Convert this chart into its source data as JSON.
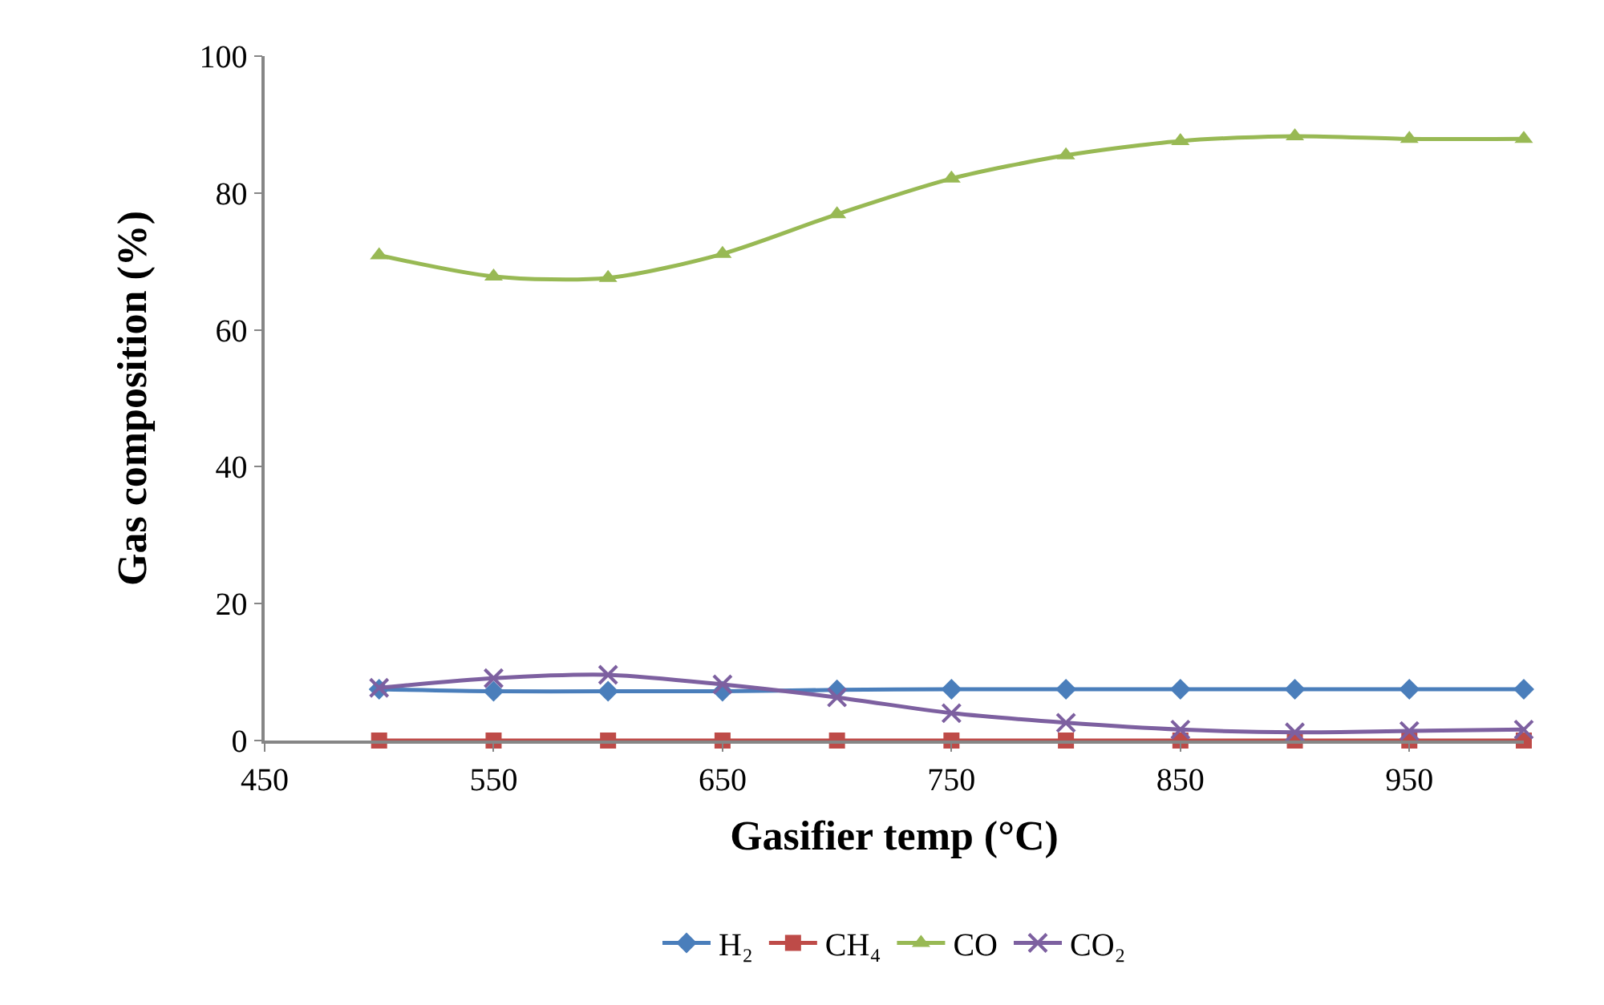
{
  "chart_data": {
    "type": "line",
    "xlabel": "Gasifier temp (°C)",
    "ylabel": "Gas composition (%)",
    "x": [
      500,
      550,
      600,
      650,
      700,
      750,
      800,
      850,
      900,
      950,
      1000
    ],
    "series": [
      {
        "name": "H₂",
        "color": "#4a7ebb",
        "marker": "diamond",
        "values": [
          7.5,
          7.2,
          7.2,
          7.2,
          7.4,
          7.5,
          7.5,
          7.5,
          7.5,
          7.5,
          7.5
        ]
      },
      {
        "name": "CH₄",
        "color": "#be4b48",
        "marker": "square",
        "values": [
          0,
          0,
          0,
          0,
          0,
          0,
          0,
          0,
          0,
          0,
          0
        ]
      },
      {
        "name": "CO",
        "color": "#98b954",
        "marker": "triangle",
        "values": [
          70.9,
          67.8,
          67.6,
          71.1,
          76.9,
          82.1,
          85.5,
          87.6,
          88.3,
          87.9,
          87.9
        ]
      },
      {
        "name": "CO₂",
        "color": "#7d60a0",
        "marker": "cross",
        "values": [
          7.7,
          9.1,
          9.6,
          8.2,
          6.3,
          4.0,
          2.6,
          1.6,
          1.2,
          1.4,
          1.6
        ]
      }
    ],
    "xlim": [
      450,
      1000
    ],
    "xticks": [
      450,
      550,
      650,
      750,
      850,
      950
    ],
    "ylim": [
      0,
      100
    ],
    "yticks": [
      0,
      20,
      40,
      60,
      80,
      100
    ],
    "grid": false,
    "legend": "bottom",
    "line_style": "solid"
  }
}
